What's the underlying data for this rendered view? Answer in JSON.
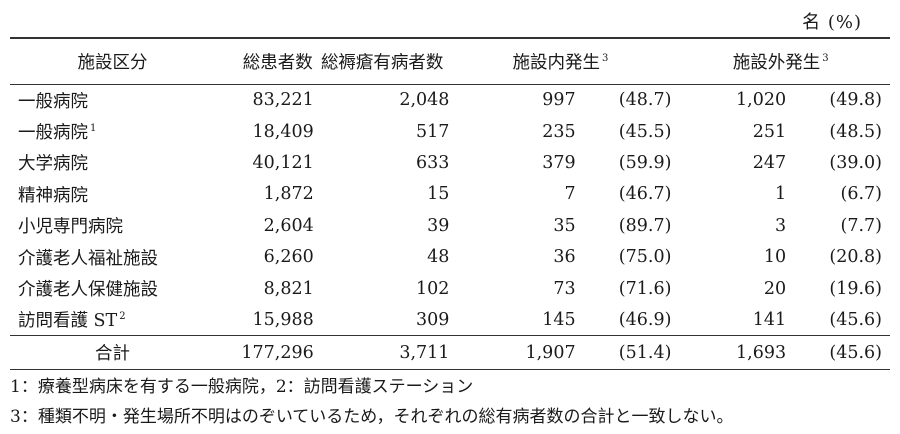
{
  "unit_label": "名 (%)",
  "headers": {
    "category": "施設区分",
    "total_patients": "総患者数",
    "pressure_ulcer_patients": "総褥瘡有病者数",
    "in_facility": "施設内発生",
    "in_facility_note": "3",
    "out_facility": "施設外発生",
    "out_facility_note": "3"
  },
  "rows": [
    {
      "name": "一般病院",
      "note": "",
      "total": "83,221",
      "has": "2,048",
      "in_n": "997",
      "in_p": "(48.7)",
      "out_n": "1,020",
      "out_p": "(49.8)"
    },
    {
      "name": "一般病院",
      "note": "1",
      "total": "18,409",
      "has": "517",
      "in_n": "235",
      "in_p": "(45.5)",
      "out_n": "251",
      "out_p": "(48.5)"
    },
    {
      "name": "大学病院",
      "note": "",
      "total": "40,121",
      "has": "633",
      "in_n": "379",
      "in_p": "(59.9)",
      "out_n": "247",
      "out_p": "(39.0)"
    },
    {
      "name": "精神病院",
      "note": "",
      "total": "1,872",
      "has": "15",
      "in_n": "7",
      "in_p": "(46.7)",
      "out_n": "1",
      "out_p": "(6.7)"
    },
    {
      "name": "小児専門病院",
      "note": "",
      "total": "2,604",
      "has": "39",
      "in_n": "35",
      "in_p": "(89.7)",
      "out_n": "3",
      "out_p": "(7.7)"
    },
    {
      "name": "介護老人福祉施設",
      "note": "",
      "total": "6,260",
      "has": "48",
      "in_n": "36",
      "in_p": "(75.0)",
      "out_n": "10",
      "out_p": "(20.8)"
    },
    {
      "name": "介護老人保健施設",
      "note": "",
      "total": "8,821",
      "has": "102",
      "in_n": "73",
      "in_p": "(71.6)",
      "out_n": "20",
      "out_p": "(19.6)"
    },
    {
      "name": "訪問看護 ST",
      "note": "2",
      "total": "15,988",
      "has": "309",
      "in_n": "145",
      "in_p": "(46.9)",
      "out_n": "141",
      "out_p": "(45.6)"
    }
  ],
  "total_row": {
    "name": "合計",
    "total": "177,296",
    "has": "3,711",
    "in_n": "1,907",
    "in_p": "(51.4)",
    "out_n": "1,693",
    "out_p": "(45.6)"
  },
  "footnotes": {
    "line1": "1：療養型病床を有する一般病院，2：訪問看護ステーション",
    "line2": "3：種類不明・発生場所不明はのぞいているため，それぞれの総有病者数の合計と一致しない。"
  }
}
